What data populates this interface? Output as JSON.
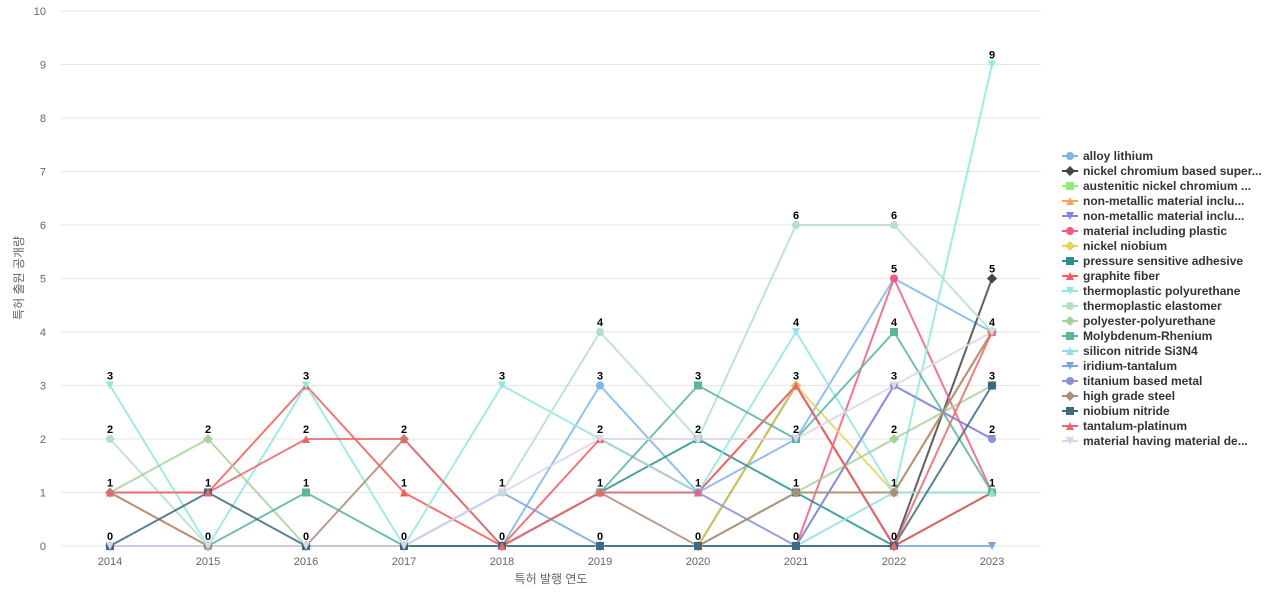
{
  "chart_data": {
    "type": "line",
    "title": "",
    "xlabel": "특허 발행 연도",
    "ylabel": "특허 출원 공개량",
    "ylim": [
      0,
      10
    ],
    "yticks": [
      0,
      1,
      2,
      3,
      4,
      5,
      6,
      7,
      8,
      9,
      10
    ],
    "categories": [
      "2014",
      "2015",
      "2016",
      "2017",
      "2018",
      "2019",
      "2020",
      "2021",
      "2022",
      "2023"
    ],
    "grid": true,
    "legend_position": "right",
    "series": [
      {
        "name": "alloy lithium",
        "color": "#7cb5ec",
        "marker": "circle",
        "values": [
          0,
          0,
          0,
          0,
          0,
          3,
          1,
          2,
          5,
          4
        ]
      },
      {
        "name": "nickel chromium based super...",
        "color": "#434348",
        "marker": "diamond",
        "values": [
          0,
          0,
          0,
          0,
          0,
          0,
          0,
          3,
          0,
          5
        ]
      },
      {
        "name": "austenitic nickel chromium ...",
        "color": "#90ed7d",
        "marker": "square",
        "values": [
          0,
          0,
          0,
          0,
          0,
          0,
          0,
          1,
          1,
          4
        ]
      },
      {
        "name": "non-metallic material inclu...",
        "color": "#f7a35c",
        "marker": "triangle",
        "values": [
          1,
          0,
          0,
          0,
          0,
          0,
          0,
          1,
          1,
          4
        ]
      },
      {
        "name": "non-metallic material inclu...",
        "color": "#8085e9",
        "marker": "triangle-down",
        "values": [
          0,
          0,
          0,
          0,
          0,
          0,
          0,
          0,
          3,
          2
        ]
      },
      {
        "name": "material including plastic",
        "color": "#f15c80",
        "marker": "circle",
        "values": [
          0,
          0,
          0,
          0,
          0,
          0,
          0,
          0,
          5,
          1
        ]
      },
      {
        "name": "nickel niobium",
        "color": "#e4d354",
        "marker": "diamond",
        "values": [
          0,
          0,
          0,
          0,
          0,
          0,
          0,
          3,
          1,
          1
        ]
      },
      {
        "name": "pressure sensitive adhesive",
        "color": "#2b908f",
        "marker": "square",
        "values": [
          0,
          0,
          0,
          0,
          0,
          1,
          2,
          1,
          0,
          1
        ]
      },
      {
        "name": "graphite fiber",
        "color": "#f45b5b",
        "marker": "triangle",
        "values": [
          1,
          1,
          3,
          1,
          0,
          2,
          1,
          3,
          0,
          1
        ]
      },
      {
        "name": "thermoplastic polyurethane",
        "color": "#91e8e1",
        "marker": "triangle-down",
        "values": [
          3,
          0,
          3,
          0,
          3,
          2,
          1,
          4,
          1,
          9
        ]
      },
      {
        "name": "thermoplastic elastomer",
        "color": "#b5dfcb",
        "marker": "circle",
        "values": [
          2,
          0,
          0,
          0,
          1,
          4,
          2,
          6,
          6,
          4
        ]
      },
      {
        "name": "polyester-polyurethane",
        "color": "#a6d19a",
        "marker": "diamond",
        "values": [
          1,
          2,
          0,
          0,
          0,
          0,
          0,
          1,
          2,
          3
        ]
      },
      {
        "name": "Molybdenum-Rhenium",
        "color": "#5bb59b",
        "marker": "square",
        "values": [
          0,
          0,
          1,
          0,
          0,
          1,
          3,
          2,
          4,
          1
        ]
      },
      {
        "name": "silicon nitride Si3N4",
        "color": "#8fdfe8",
        "marker": "triangle",
        "values": [
          0,
          0,
          0,
          0,
          0,
          0,
          0,
          0,
          1,
          1
        ]
      },
      {
        "name": "iridium-tantalum",
        "color": "#7aa7db",
        "marker": "triangle-down",
        "values": [
          0,
          0,
          0,
          0,
          1,
          0,
          0,
          0,
          0,
          0
        ]
      },
      {
        "name": "titanium based metal",
        "color": "#8a8fd8",
        "marker": "circle",
        "values": [
          0,
          0,
          0,
          0,
          0,
          1,
          1,
          0,
          3,
          2
        ]
      },
      {
        "name": "high grade steel",
        "color": "#b08c78",
        "marker": "diamond",
        "values": [
          1,
          0,
          0,
          2,
          0,
          1,
          0,
          1,
          1,
          4
        ]
      },
      {
        "name": "niobium nitride",
        "color": "#3d6a80",
        "marker": "square",
        "values": [
          0,
          1,
          0,
          0,
          0,
          0,
          0,
          0,
          0,
          3
        ]
      },
      {
        "name": "tantalum-platinum",
        "color": "#e8696b",
        "marker": "triangle",
        "values": [
          1,
          1,
          2,
          2,
          0,
          1,
          1,
          3,
          0,
          4
        ]
      },
      {
        "name": "material having material de...",
        "color": "#ddd3ea",
        "marker": "triangle-down",
        "values": [
          0,
          0,
          0,
          0,
          1,
          2,
          2,
          2,
          3,
          4
        ]
      }
    ],
    "annotations": [
      {
        "category": "2014",
        "value": 3,
        "text": "3"
      },
      {
        "category": "2014",
        "value": 2,
        "text": "2"
      },
      {
        "category": "2014",
        "value": 1,
        "text": "1"
      },
      {
        "category": "2014",
        "value": 0,
        "text": "0"
      },
      {
        "category": "2015",
        "value": 2,
        "text": "2"
      },
      {
        "category": "2015",
        "value": 1,
        "text": "1"
      },
      {
        "category": "2015",
        "value": 0,
        "text": "0"
      },
      {
        "category": "2016",
        "value": 3,
        "text": "3"
      },
      {
        "category": "2016",
        "value": 2,
        "text": "2"
      },
      {
        "category": "2016",
        "value": 1,
        "text": "1"
      },
      {
        "category": "2016",
        "value": 0,
        "text": "0"
      },
      {
        "category": "2017",
        "value": 2,
        "text": "2"
      },
      {
        "category": "2017",
        "value": 1,
        "text": "1"
      },
      {
        "category": "2017",
        "value": 0,
        "text": "0"
      },
      {
        "category": "2018",
        "value": 3,
        "text": "3"
      },
      {
        "category": "2018",
        "value": 1,
        "text": "1"
      },
      {
        "category": "2018",
        "value": 0,
        "text": "0"
      },
      {
        "category": "2019",
        "value": 4,
        "text": "4"
      },
      {
        "category": "2019",
        "value": 3,
        "text": "3"
      },
      {
        "category": "2019",
        "value": 2,
        "text": "2"
      },
      {
        "category": "2019",
        "value": 1,
        "text": "1"
      },
      {
        "category": "2019",
        "value": 0,
        "text": "0"
      },
      {
        "category": "2020",
        "value": 3,
        "text": "3"
      },
      {
        "category": "2020",
        "value": 2,
        "text": "2"
      },
      {
        "category": "2020",
        "value": 1,
        "text": "1"
      },
      {
        "category": "2020",
        "value": 0,
        "text": "0"
      },
      {
        "category": "2021",
        "value": 6,
        "text": "6"
      },
      {
        "category": "2021",
        "value": 4,
        "text": "4"
      },
      {
        "category": "2021",
        "value": 3,
        "text": "3"
      },
      {
        "category": "2021",
        "value": 2,
        "text": "2"
      },
      {
        "category": "2021",
        "value": 1,
        "text": "1"
      },
      {
        "category": "2021",
        "value": 0,
        "text": "0"
      },
      {
        "category": "2022",
        "value": 6,
        "text": "6"
      },
      {
        "category": "2022",
        "value": 5,
        "text": "5"
      },
      {
        "category": "2022",
        "value": 4,
        "text": "4"
      },
      {
        "category": "2022",
        "value": 3,
        "text": "3"
      },
      {
        "category": "2022",
        "value": 2,
        "text": "2"
      },
      {
        "category": "2022",
        "value": 1,
        "text": "1"
      },
      {
        "category": "2022",
        "value": 0,
        "text": "0"
      },
      {
        "category": "2023",
        "value": 9,
        "text": "9"
      },
      {
        "category": "2023",
        "value": 5,
        "text": "5"
      },
      {
        "category": "2023",
        "value": 4,
        "text": "4"
      },
      {
        "category": "2023",
        "value": 3,
        "text": "3"
      },
      {
        "category": "2023",
        "value": 2,
        "text": "2"
      },
      {
        "category": "2023",
        "value": 1,
        "text": "1"
      }
    ]
  }
}
